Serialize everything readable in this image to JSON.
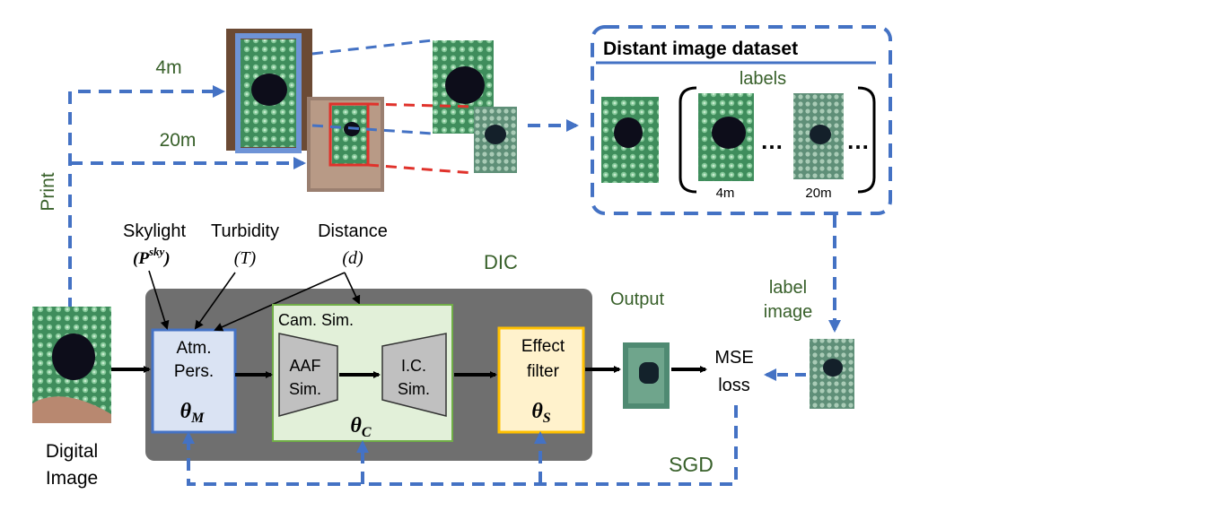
{
  "distances": {
    "near": "4m",
    "far": "20m"
  },
  "print_label": "Print",
  "dataset": {
    "title": "Distant image dataset",
    "labels_title": "labels",
    "ellipsis": "…",
    "label_distances": [
      "4m",
      "20m"
    ]
  },
  "inputs": {
    "skylight": {
      "name": "Skylight",
      "symbol": "(P",
      "sup": "sky",
      "close": ")"
    },
    "turbidity": {
      "name": "Turbidity",
      "symbol": "(T)"
    },
    "distance": {
      "name": "Distance",
      "symbol": "(d)"
    }
  },
  "dic": {
    "title": "DIC"
  },
  "atm": {
    "line1": "Atm.",
    "line2": "Pers.",
    "theta": "θ",
    "sub": "M"
  },
  "cam": {
    "title": "Cam. Sim.",
    "aaf_line1": "AAF",
    "aaf_line2": "Sim.",
    "ic_line1": "I.C.",
    "ic_line2": "Sim.",
    "theta": "θ",
    "sub": "C"
  },
  "effect": {
    "line1": "Effect",
    "line2": "filter",
    "theta": "θ",
    "sub": "S"
  },
  "output_label": "Output",
  "digital_image": {
    "line1": "Digital",
    "line2": "Image"
  },
  "label_image": {
    "line1": "label",
    "line2": "image"
  },
  "loss": {
    "line1": "MSE",
    "line2": "loss"
  },
  "optimizer": "SGD",
  "colors": {
    "dashed_blue": "#4472c4",
    "dashed_red": "#e0322b",
    "green_text": "#38602a",
    "dic_bg": "#6f6f6f",
    "atm_fill": "#dae3f3",
    "cam_fill": "#e2f0d9",
    "effect_fill": "#fff2cc",
    "effect_border": "#ffc000"
  }
}
